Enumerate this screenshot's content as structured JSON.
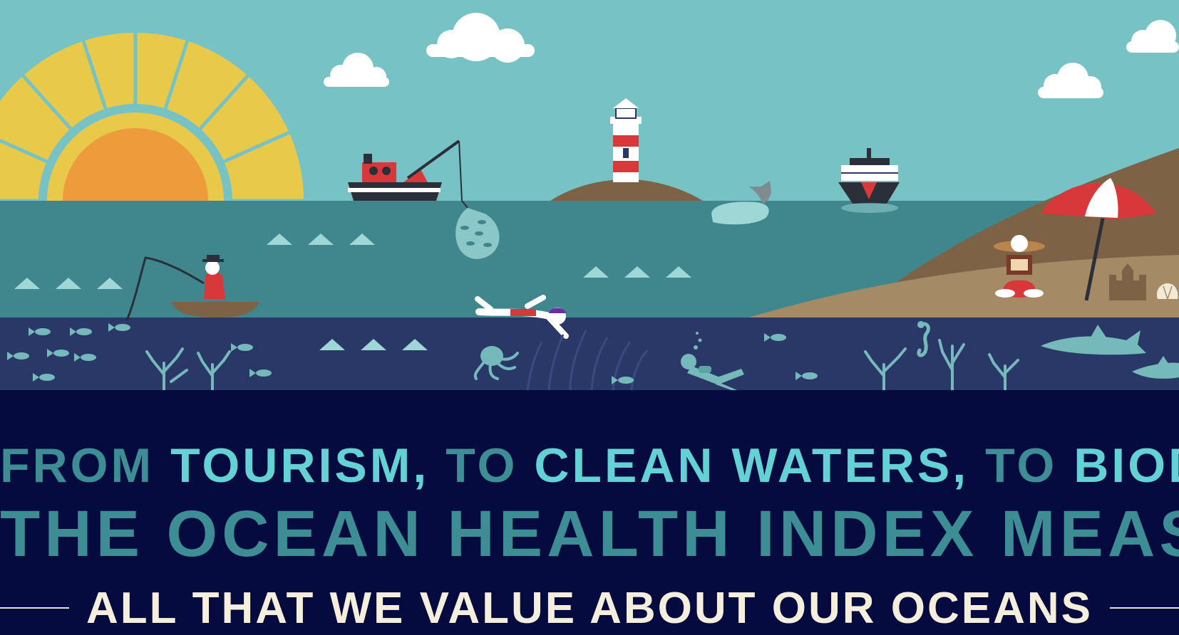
{
  "headline": {
    "line1": {
      "from": "FROM",
      "tourism": "TOURISM,",
      "to_1": "TO",
      "clean_waters": "CLEAN WATERS,",
      "to_2": "TO",
      "biodiversity": "BIODIVERSITY,"
    },
    "line2": "THE OCEAN HEALTH INDEX MEASURES",
    "line3": "ALL THAT WE VALUE ABOUT OUR OCEANS"
  },
  "colors": {
    "sky": "#76c2c4",
    "sun_rays": "#e9c94a",
    "sun_core": "#ee9b3c",
    "sea_surface": "#3f868d",
    "sea_deep": "#2a3868",
    "banner_bg": "#050a3f",
    "highlight_text": "#63d2d4",
    "dim_text": "#3c8d94",
    "light_text": "#f6eedd",
    "hill": "#7d6246",
    "sand": "#a58a66"
  },
  "scene_icons": [
    "sun-icon",
    "cloud-icon",
    "fishing-trawler-icon",
    "net-icon",
    "lighthouse-icon",
    "whale-icon",
    "container-ship-icon",
    "fisherman-boat-icon",
    "swimmer-icon",
    "octopus-icon",
    "diver-icon",
    "seahorse-icon",
    "coral-icon",
    "shark-icon",
    "fish-icon",
    "beach-umbrella-icon",
    "reading-person-icon",
    "sandcastle-icon",
    "seashell-icon",
    "wave-icon"
  ]
}
